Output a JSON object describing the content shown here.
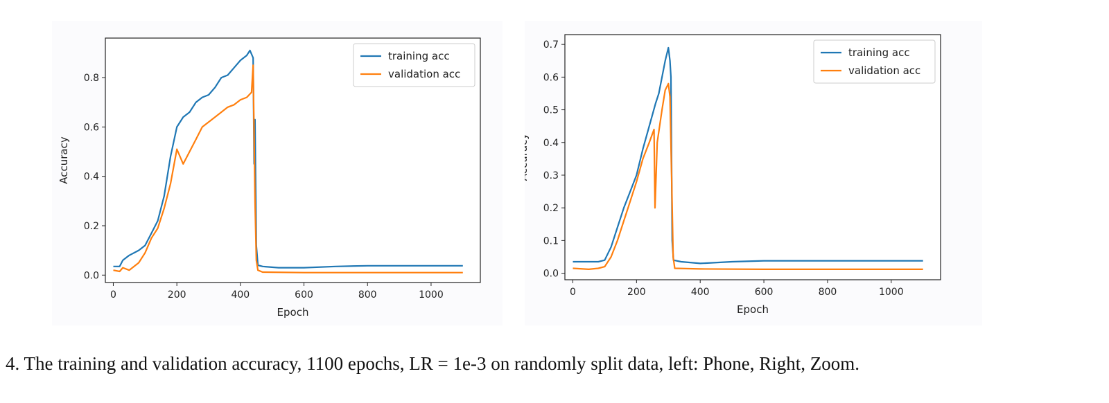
{
  "caption": "4. The training and validation accuracy, 1100 epochs, LR = 1e-3 on randomly split data, left: Phone, Right, Zoom.",
  "colors": {
    "training": "#1f77b4",
    "validation": "#ff7f0e"
  },
  "chart_data": [
    {
      "type": "line",
      "xlabel": "Epoch",
      "ylabel": "Accuracy",
      "xlim": [
        -25,
        1155
      ],
      "ylim": [
        -0.03,
        0.96
      ],
      "xticks": [
        0,
        200,
        400,
        600,
        800,
        1000
      ],
      "yticks": [
        0.0,
        0.2,
        0.4,
        0.6,
        0.8
      ],
      "legend": "top-right",
      "series": [
        {
          "name": "training acc",
          "color": "#1f77b4",
          "points": [
            [
              0,
              0.035
            ],
            [
              20,
              0.035
            ],
            [
              30,
              0.06
            ],
            [
              50,
              0.08
            ],
            [
              80,
              0.1
            ],
            [
              100,
              0.12
            ],
            [
              120,
              0.17
            ],
            [
              140,
              0.22
            ],
            [
              160,
              0.32
            ],
            [
              180,
              0.48
            ],
            [
              200,
              0.6
            ],
            [
              220,
              0.64
            ],
            [
              240,
              0.66
            ],
            [
              260,
              0.7
            ],
            [
              280,
              0.72
            ],
            [
              300,
              0.73
            ],
            [
              320,
              0.76
            ],
            [
              340,
              0.8
            ],
            [
              360,
              0.81
            ],
            [
              380,
              0.84
            ],
            [
              400,
              0.87
            ],
            [
              420,
              0.89
            ],
            [
              430,
              0.91
            ],
            [
              440,
              0.88
            ],
            [
              443,
              0.45
            ],
            [
              446,
              0.63
            ],
            [
              450,
              0.12
            ],
            [
              455,
              0.04
            ],
            [
              470,
              0.035
            ],
            [
              520,
              0.03
            ],
            [
              600,
              0.03
            ],
            [
              700,
              0.035
            ],
            [
              800,
              0.038
            ],
            [
              1100,
              0.038
            ]
          ]
        },
        {
          "name": "validation acc",
          "color": "#ff7f0e",
          "points": [
            [
              0,
              0.02
            ],
            [
              20,
              0.015
            ],
            [
              30,
              0.03
            ],
            [
              50,
              0.02
            ],
            [
              80,
              0.05
            ],
            [
              100,
              0.09
            ],
            [
              120,
              0.15
            ],
            [
              140,
              0.19
            ],
            [
              160,
              0.27
            ],
            [
              180,
              0.37
            ],
            [
              200,
              0.51
            ],
            [
              220,
              0.45
            ],
            [
              240,
              0.5
            ],
            [
              260,
              0.55
            ],
            [
              280,
              0.6
            ],
            [
              300,
              0.62
            ],
            [
              320,
              0.64
            ],
            [
              340,
              0.66
            ],
            [
              360,
              0.68
            ],
            [
              380,
              0.69
            ],
            [
              400,
              0.71
            ],
            [
              420,
              0.72
            ],
            [
              435,
              0.74
            ],
            [
              440,
              0.85
            ],
            [
              446,
              0.3
            ],
            [
              450,
              0.06
            ],
            [
              455,
              0.02
            ],
            [
              470,
              0.012
            ],
            [
              600,
              0.01
            ],
            [
              1100,
              0.01
            ]
          ]
        }
      ]
    },
    {
      "type": "line",
      "xlabel": "Epoch",
      "ylabel": "Accuracy",
      "xlim": [
        -25,
        1155
      ],
      "ylim": [
        -0.02,
        0.73
      ],
      "xticks": [
        0,
        200,
        400,
        600,
        800,
        1000
      ],
      "yticks": [
        0.0,
        0.1,
        0.2,
        0.3,
        0.4,
        0.5,
        0.6,
        0.7
      ],
      "legend": "top-right",
      "series": [
        {
          "name": "training acc",
          "color": "#1f77b4",
          "points": [
            [
              0,
              0.035
            ],
            [
              50,
              0.035
            ],
            [
              80,
              0.035
            ],
            [
              100,
              0.04
            ],
            [
              120,
              0.08
            ],
            [
              140,
              0.14
            ],
            [
              160,
              0.2
            ],
            [
              180,
              0.25
            ],
            [
              200,
              0.3
            ],
            [
              220,
              0.38
            ],
            [
              240,
              0.45
            ],
            [
              260,
              0.52
            ],
            [
              270,
              0.55
            ],
            [
              280,
              0.6
            ],
            [
              290,
              0.65
            ],
            [
              300,
              0.69
            ],
            [
              305,
              0.65
            ],
            [
              308,
              0.6
            ],
            [
              312,
              0.1
            ],
            [
              316,
              0.04
            ],
            [
              340,
              0.035
            ],
            [
              400,
              0.03
            ],
            [
              500,
              0.035
            ],
            [
              600,
              0.038
            ],
            [
              1100,
              0.038
            ]
          ]
        },
        {
          "name": "validation acc",
          "color": "#ff7f0e",
          "points": [
            [
              0,
              0.015
            ],
            [
              50,
              0.012
            ],
            [
              80,
              0.015
            ],
            [
              100,
              0.02
            ],
            [
              120,
              0.05
            ],
            [
              140,
              0.1
            ],
            [
              160,
              0.16
            ],
            [
              180,
              0.22
            ],
            [
              200,
              0.28
            ],
            [
              220,
              0.35
            ],
            [
              240,
              0.4
            ],
            [
              255,
              0.44
            ],
            [
              258,
              0.2
            ],
            [
              265,
              0.4
            ],
            [
              280,
              0.5
            ],
            [
              290,
              0.56
            ],
            [
              300,
              0.58
            ],
            [
              305,
              0.54
            ],
            [
              310,
              0.3
            ],
            [
              315,
              0.05
            ],
            [
              320,
              0.015
            ],
            [
              400,
              0.013
            ],
            [
              600,
              0.012
            ],
            [
              1100,
              0.012
            ]
          ]
        }
      ]
    }
  ]
}
